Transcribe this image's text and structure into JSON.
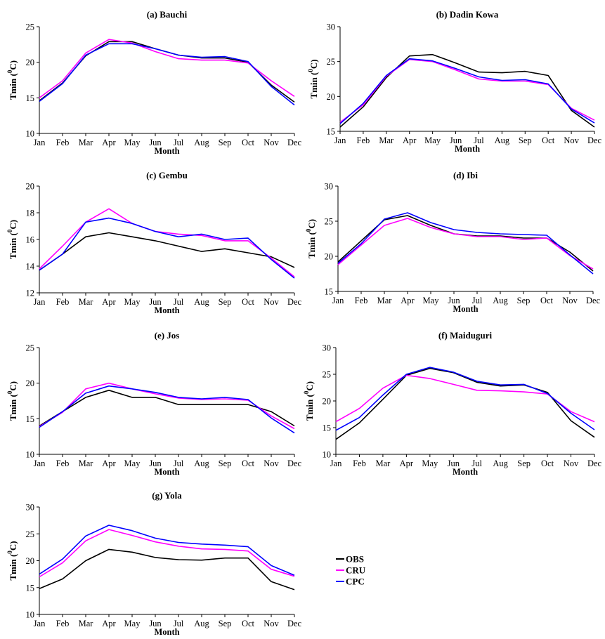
{
  "legend": {
    "position": "lower-right",
    "entries": [
      {
        "name": "OBS",
        "color": "#000000"
      },
      {
        "name": "CRU",
        "color": "#ff00ff"
      },
      {
        "name": "CPC",
        "color": "#0000ff"
      }
    ]
  },
  "chart_data": [
    {
      "type": "line",
      "title": "(a) Bauchi",
      "xlabel": "Month",
      "ylabel": "Tmin (⁰C)",
      "ylim": [
        10,
        25
      ],
      "yticks": [
        10,
        15,
        20,
        25
      ],
      "grid": false,
      "categories": [
        "Jan",
        "Feb",
        "Mar",
        "Apr",
        "May",
        "Jun",
        "Jul",
        "Aug",
        "Sep",
        "Oct",
        "Nov",
        "Dec"
      ],
      "series": [
        {
          "name": "OBS",
          "color": "#000000",
          "values": [
            14.6,
            17.1,
            20.9,
            22.9,
            22.9,
            21.9,
            21.0,
            20.6,
            20.6,
            20.0,
            16.8,
            14.4
          ]
        },
        {
          "name": "CRU",
          "color": "#ff00ff",
          "values": [
            15.0,
            17.4,
            21.3,
            23.2,
            22.7,
            21.5,
            20.5,
            20.3,
            20.3,
            19.9,
            17.4,
            15.2
          ]
        },
        {
          "name": "CPC",
          "color": "#0000ff",
          "values": [
            14.5,
            17.0,
            21.0,
            22.6,
            22.6,
            21.9,
            21.0,
            20.7,
            20.8,
            20.1,
            16.6,
            14.0
          ]
        }
      ]
    },
    {
      "type": "line",
      "title": "(b) Dadin Kowa",
      "xlabel": "Month",
      "ylabel": "Tmin (⁰C)",
      "ylim": [
        15,
        30
      ],
      "yticks": [
        15,
        20,
        25,
        30
      ],
      "grid": false,
      "categories": [
        "Jan",
        "Feb",
        "Mar",
        "Apr",
        "May",
        "Jun",
        "Jul",
        "Aug",
        "Sep",
        "Oct",
        "Nov",
        "Dec"
      ],
      "series": [
        {
          "name": "OBS",
          "color": "#000000",
          "values": [
            15.6,
            18.5,
            22.7,
            25.8,
            26.0,
            24.8,
            23.5,
            23.4,
            23.6,
            23.0,
            18.0,
            15.6
          ]
        },
        {
          "name": "CRU",
          "color": "#ff00ff",
          "values": [
            16.3,
            18.8,
            22.9,
            25.3,
            25.0,
            23.8,
            22.5,
            22.2,
            22.2,
            21.7,
            18.3,
            16.6
          ]
        },
        {
          "name": "CPC",
          "color": "#0000ff",
          "values": [
            16.1,
            19.0,
            23.0,
            25.4,
            25.1,
            24.0,
            22.8,
            22.3,
            22.4,
            21.8,
            18.2,
            16.2
          ]
        }
      ]
    },
    {
      "type": "line",
      "title": "(c) Gembu",
      "xlabel": "Month",
      "ylabel": "Tmin (⁰C)",
      "ylim": [
        12,
        20
      ],
      "yticks": [
        12,
        14,
        16,
        18,
        20
      ],
      "grid": false,
      "categories": [
        "Jan",
        "Feb",
        "Mar",
        "Apr",
        "May",
        "Jun",
        "Jul",
        "Aug",
        "Sep",
        "Oct",
        "Nov",
        "Dec"
      ],
      "series": [
        {
          "name": "OBS",
          "color": "#000000",
          "values": [
            13.7,
            14.9,
            16.2,
            16.5,
            16.2,
            15.9,
            15.5,
            15.1,
            15.3,
            15.0,
            14.7,
            13.9
          ]
        },
        {
          "name": "CRU",
          "color": "#ff00ff",
          "values": [
            13.8,
            15.5,
            17.3,
            18.3,
            17.2,
            16.6,
            16.4,
            16.3,
            15.9,
            15.9,
            14.6,
            13.2
          ]
        },
        {
          "name": "CPC",
          "color": "#0000ff",
          "values": [
            13.7,
            14.9,
            17.3,
            17.6,
            17.2,
            16.6,
            16.2,
            16.4,
            16.0,
            16.1,
            14.5,
            13.1
          ]
        }
      ]
    },
    {
      "type": "line",
      "title": "(d) Ibi",
      "xlabel": "Month",
      "ylabel": "Tmin (⁰C)",
      "ylim": [
        15,
        30
      ],
      "yticks": [
        15,
        20,
        25,
        30
      ],
      "grid": false,
      "categories": [
        "Jan",
        "Feb",
        "Mar",
        "Apr",
        "May",
        "Jun",
        "Jul",
        "Aug",
        "Sep",
        "Oct",
        "Nov",
        "Dec"
      ],
      "series": [
        {
          "name": "OBS",
          "color": "#000000",
          "values": [
            19.2,
            22.2,
            25.2,
            25.8,
            24.4,
            23.2,
            22.9,
            22.9,
            22.6,
            22.6,
            20.6,
            17.9
          ]
        },
        {
          "name": "CRU",
          "color": "#ff00ff",
          "values": [
            18.8,
            21.6,
            24.4,
            25.4,
            24.1,
            23.2,
            22.8,
            22.8,
            22.4,
            22.6,
            20.1,
            18.2
          ]
        },
        {
          "name": "CPC",
          "color": "#0000ff",
          "values": [
            19.0,
            21.8,
            25.3,
            26.2,
            24.8,
            23.8,
            23.4,
            23.2,
            23.1,
            23.0,
            20.2,
            17.5
          ]
        }
      ]
    },
    {
      "type": "line",
      "title": "(e) Jos",
      "xlabel": "Month",
      "ylabel": "Tmin (⁰C)",
      "ylim": [
        10,
        25
      ],
      "yticks": [
        10,
        15,
        20,
        25
      ],
      "grid": false,
      "categories": [
        "Jan",
        "Feb",
        "Mar",
        "Apr",
        "May",
        "Jun",
        "Jul",
        "Aug",
        "Sep",
        "Oct",
        "Nov",
        "Dec"
      ],
      "series": [
        {
          "name": "OBS",
          "color": "#000000",
          "values": [
            14.0,
            16.0,
            18.0,
            19.0,
            18.0,
            18.0,
            17.0,
            17.0,
            17.0,
            17.0,
            16.0,
            14.0
          ]
        },
        {
          "name": "CRU",
          "color": "#ff00ff",
          "values": [
            13.9,
            15.9,
            19.2,
            20.0,
            19.2,
            18.5,
            17.9,
            17.7,
            17.8,
            17.6,
            15.4,
            13.6
          ]
        },
        {
          "name": "CPC",
          "color": "#0000ff",
          "values": [
            13.8,
            16.0,
            18.6,
            19.6,
            19.2,
            18.7,
            18.0,
            17.8,
            18.0,
            17.7,
            15.1,
            13.0
          ]
        }
      ]
    },
    {
      "type": "line",
      "title": "(f) Maiduguri",
      "xlabel": "Month",
      "ylabel": "Tmin (⁰C)",
      "ylim": [
        10,
        30
      ],
      "yticks": [
        10,
        15,
        20,
        25,
        30
      ],
      "grid": false,
      "categories": [
        "Jan",
        "Feb",
        "Mar",
        "Apr",
        "May",
        "Jun",
        "Jul",
        "Aug",
        "Sep",
        "Oct",
        "Nov",
        "Dec"
      ],
      "series": [
        {
          "name": "OBS",
          "color": "#000000",
          "values": [
            12.8,
            15.9,
            20.3,
            24.8,
            26.1,
            25.3,
            23.5,
            22.8,
            23.0,
            21.6,
            16.3,
            13.2
          ]
        },
        {
          "name": "CRU",
          "color": "#ff00ff",
          "values": [
            16.1,
            18.6,
            22.4,
            24.8,
            24.2,
            23.1,
            22.0,
            21.9,
            21.7,
            21.3,
            18.0,
            16.1
          ]
        },
        {
          "name": "CPC",
          "color": "#0000ff",
          "values": [
            14.5,
            16.9,
            21.1,
            25.0,
            26.3,
            25.4,
            23.7,
            23.0,
            23.1,
            21.4,
            17.7,
            14.6
          ]
        }
      ]
    },
    {
      "type": "line",
      "title": "(g) Yola",
      "xlabel": "Month",
      "ylabel": "Tmin (⁰C)",
      "ylim": [
        10,
        30
      ],
      "yticks": [
        10,
        15,
        20,
        25,
        30
      ],
      "grid": false,
      "categories": [
        "Jan",
        "Feb",
        "Mar",
        "Apr",
        "May",
        "Jun",
        "Jul",
        "Aug",
        "Sep",
        "Oct",
        "Nov",
        "Dec"
      ],
      "series": [
        {
          "name": "OBS",
          "color": "#000000",
          "values": [
            14.8,
            16.6,
            20.0,
            22.1,
            21.6,
            20.6,
            20.2,
            20.1,
            20.5,
            20.5,
            16.1,
            14.6
          ]
        },
        {
          "name": "CRU",
          "color": "#ff00ff",
          "values": [
            17.0,
            19.6,
            23.7,
            25.8,
            24.7,
            23.5,
            22.7,
            22.2,
            22.1,
            21.8,
            18.4,
            17.1
          ]
        },
        {
          "name": "CPC",
          "color": "#0000ff",
          "values": [
            17.5,
            20.3,
            24.6,
            26.6,
            25.6,
            24.2,
            23.4,
            23.1,
            22.9,
            22.6,
            19.1,
            17.3
          ]
        }
      ]
    }
  ]
}
